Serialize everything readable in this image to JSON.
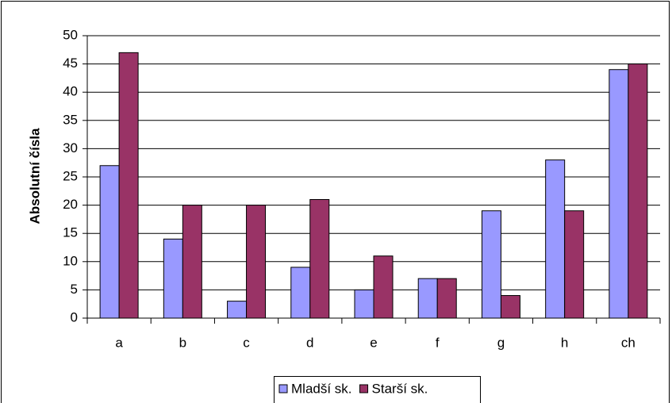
{
  "chart_data": {
    "type": "bar",
    "categories": [
      "a",
      "b",
      "c",
      "d",
      "e",
      "f",
      "g",
      "h",
      "ch"
    ],
    "series": [
      {
        "name": "Mladší sk.",
        "color": "#9999ff",
        "values": [
          27,
          14,
          3,
          9,
          5,
          7,
          19,
          28,
          44
        ]
      },
      {
        "name": "Starší sk.",
        "color": "#993366",
        "values": [
          47,
          20,
          20,
          21,
          11,
          7,
          4,
          19,
          45
        ]
      }
    ],
    "y_label": "Absolutní čísla",
    "ylim": [
      0,
      50
    ],
    "yticks": [
      0,
      5,
      10,
      15,
      20,
      25,
      30,
      35,
      40,
      45,
      50
    ],
    "grid": true,
    "legend": "bottom"
  }
}
